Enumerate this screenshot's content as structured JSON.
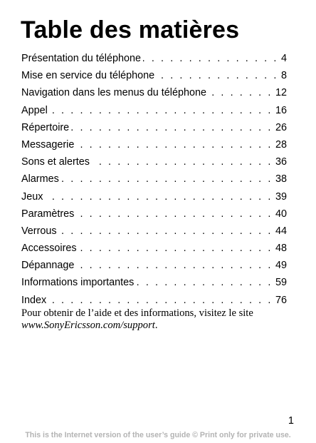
{
  "page": {
    "title": "Table des matières",
    "toc": [
      {
        "label": "Présentation du téléphone",
        "page": "4"
      },
      {
        "label": "Mise en service du téléphone",
        "page": "8"
      },
      {
        "label": "Navigation dans les menus du téléphone",
        "page": "12"
      },
      {
        "label": "Appel",
        "page": "16"
      },
      {
        "label": "Répertoire",
        "page": "26"
      },
      {
        "label": "Messagerie",
        "page": "28"
      },
      {
        "label": "Sons et alertes",
        "page": "36"
      },
      {
        "label": "Alarmes",
        "page": "38"
      },
      {
        "label": "Jeux",
        "page": "39"
      },
      {
        "label": "Paramètres",
        "page": "40"
      },
      {
        "label": "Verrous",
        "page": "44"
      },
      {
        "label": "Accessoires",
        "page": "48"
      },
      {
        "label": "Dépannage",
        "page": "49"
      },
      {
        "label": "Informations importantes",
        "page": "59"
      },
      {
        "label": "Index",
        "page": "76"
      }
    ],
    "help_text": "Pour obtenir de l’aide et des informations, visitez le site",
    "help_url": "www.SonyEricsson.com/support",
    "help_url_suffix": ".",
    "page_number": "1",
    "footer": "This is the Internet version of the user’s guide © Print only for private use."
  },
  "colors": {
    "text": "#000000",
    "footer": "#b3b3b3",
    "background": "#ffffff"
  }
}
